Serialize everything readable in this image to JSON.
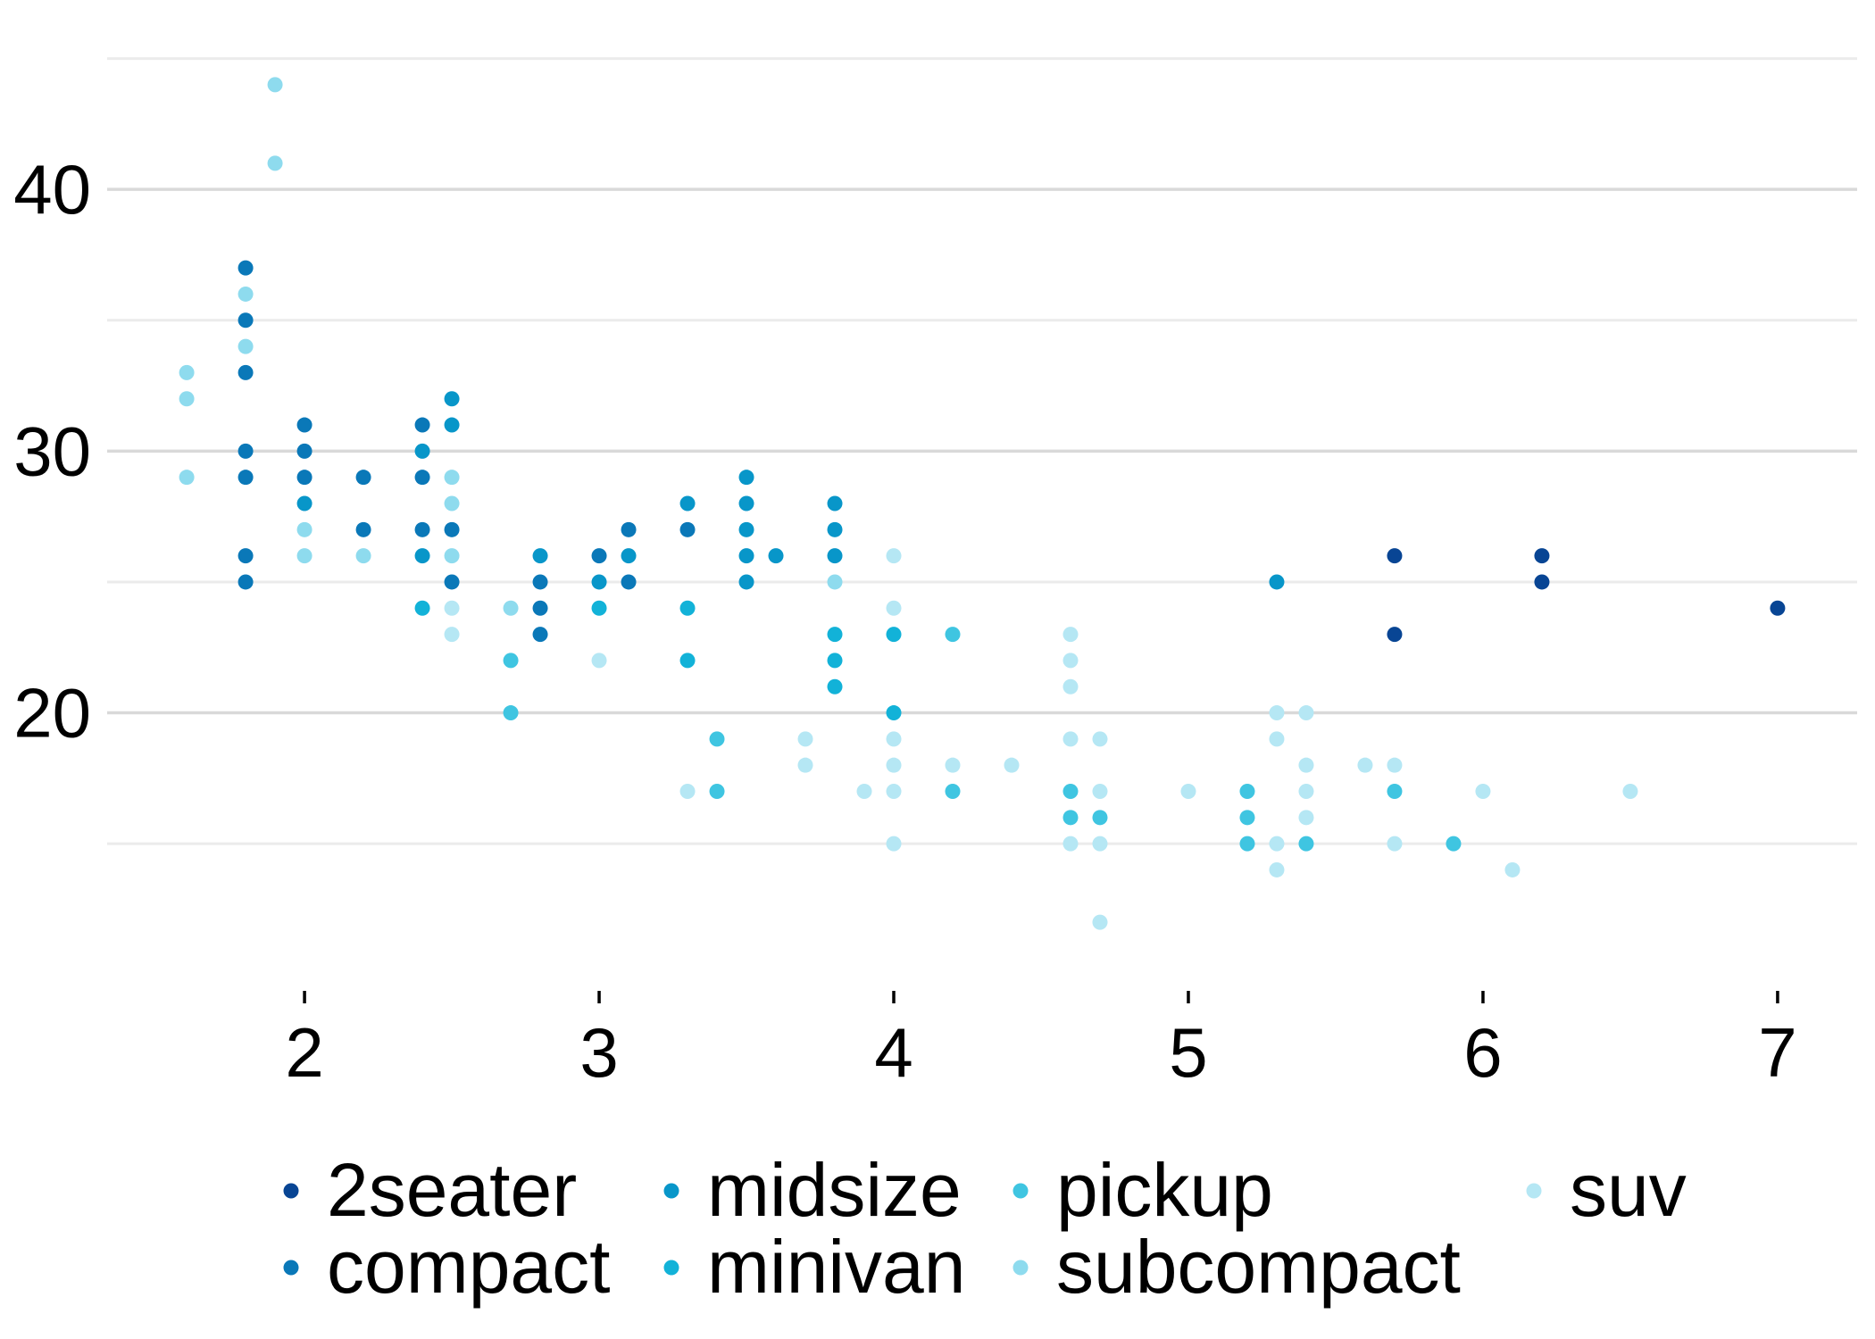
{
  "chart_data": {
    "type": "scatter",
    "title": "",
    "xlabel": "",
    "ylabel": "",
    "xlim": [
      1.33,
      7.27
    ],
    "ylim": [
      10.4,
      45.6
    ],
    "x_ticks": [
      {
        "value": 2,
        "label": "2"
      },
      {
        "value": 3,
        "label": "3"
      },
      {
        "value": 4,
        "label": "4"
      },
      {
        "value": 5,
        "label": "5"
      },
      {
        "value": 6,
        "label": "6"
      },
      {
        "value": 7,
        "label": "7"
      }
    ],
    "y_ticks": [
      {
        "value": 20,
        "label": "20"
      },
      {
        "value": 30,
        "label": "30"
      },
      {
        "value": 40,
        "label": "40"
      }
    ],
    "y_minor_grid": [
      15,
      25,
      35,
      45
    ],
    "grid": "horizontal",
    "legend_position": "bottom",
    "series": [
      {
        "name": "2seater",
        "color": "#084594",
        "points": [
          [
            5.7,
            26
          ],
          [
            5.7,
            23
          ],
          [
            6.2,
            26
          ],
          [
            6.2,
            25
          ],
          [
            7.0,
            24
          ]
        ]
      },
      {
        "name": "compact",
        "color": "#0a78b8",
        "points": [
          [
            1.8,
            37
          ],
          [
            1.8,
            35
          ],
          [
            1.8,
            33
          ],
          [
            1.8,
            30
          ],
          [
            1.8,
            29
          ],
          [
            1.8,
            26
          ],
          [
            1.8,
            25
          ],
          [
            2.0,
            31
          ],
          [
            2.0,
            30
          ],
          [
            2.0,
            29
          ],
          [
            2.2,
            29
          ],
          [
            2.2,
            27
          ],
          [
            2.4,
            31
          ],
          [
            2.4,
            29
          ],
          [
            2.4,
            27
          ],
          [
            2.5,
            27
          ],
          [
            2.5,
            25
          ],
          [
            2.8,
            25
          ],
          [
            2.8,
            24
          ],
          [
            2.8,
            23
          ],
          [
            3.0,
            26
          ],
          [
            3.1,
            27
          ],
          [
            3.1,
            25
          ],
          [
            3.3,
            27
          ]
        ]
      },
      {
        "name": "midsize",
        "color": "#0896c9",
        "points": [
          [
            2.0,
            28
          ],
          [
            2.4,
            30
          ],
          [
            2.4,
            26
          ],
          [
            2.5,
            32
          ],
          [
            2.5,
            31
          ],
          [
            2.8,
            26
          ],
          [
            3.0,
            25
          ],
          [
            3.1,
            26
          ],
          [
            3.3,
            28
          ],
          [
            3.5,
            29
          ],
          [
            3.5,
            28
          ],
          [
            3.5,
            27
          ],
          [
            3.5,
            26
          ],
          [
            3.5,
            25
          ],
          [
            3.6,
            26
          ],
          [
            3.8,
            28
          ],
          [
            3.8,
            27
          ],
          [
            3.8,
            26
          ],
          [
            5.3,
            25
          ]
        ]
      },
      {
        "name": "minivan",
        "color": "#12b2d8",
        "points": [
          [
            2.4,
            24
          ],
          [
            3.0,
            24
          ],
          [
            3.3,
            24
          ],
          [
            3.3,
            22
          ],
          [
            3.8,
            23
          ],
          [
            3.8,
            22
          ],
          [
            3.8,
            21
          ],
          [
            4.0,
            23
          ],
          [
            4.0,
            20
          ]
        ]
      },
      {
        "name": "pickup",
        "color": "#3fc5e1",
        "points": [
          [
            2.7,
            22
          ],
          [
            2.7,
            20
          ],
          [
            3.4,
            19
          ],
          [
            3.4,
            17
          ],
          [
            4.2,
            23
          ],
          [
            4.2,
            17
          ],
          [
            4.6,
            17
          ],
          [
            4.6,
            16
          ],
          [
            4.7,
            16
          ],
          [
            5.2,
            17
          ],
          [
            5.2,
            16
          ],
          [
            5.2,
            15
          ],
          [
            5.4,
            15
          ],
          [
            5.7,
            17
          ],
          [
            5.9,
            15
          ]
        ]
      },
      {
        "name": "subcompact",
        "color": "#8edbee",
        "points": [
          [
            1.6,
            33
          ],
          [
            1.6,
            32
          ],
          [
            1.6,
            29
          ],
          [
            1.8,
            36
          ],
          [
            1.8,
            34
          ],
          [
            1.9,
            44
          ],
          [
            1.9,
            41
          ],
          [
            2.0,
            27
          ],
          [
            2.0,
            26
          ],
          [
            2.2,
            26
          ],
          [
            2.5,
            29
          ],
          [
            2.5,
            28
          ],
          [
            2.5,
            26
          ],
          [
            2.7,
            24
          ],
          [
            3.8,
            25
          ]
        ]
      },
      {
        "name": "suv",
        "color": "#b5e7f4",
        "points": [
          [
            2.5,
            24
          ],
          [
            2.5,
            23
          ],
          [
            3.0,
            22
          ],
          [
            3.3,
            17
          ],
          [
            3.7,
            19
          ],
          [
            3.7,
            18
          ],
          [
            3.9,
            17
          ],
          [
            4.0,
            26
          ],
          [
            4.0,
            24
          ],
          [
            4.0,
            19
          ],
          [
            4.0,
            18
          ],
          [
            4.0,
            17
          ],
          [
            4.0,
            15
          ],
          [
            4.2,
            18
          ],
          [
            4.4,
            18
          ],
          [
            4.6,
            23
          ],
          [
            4.6,
            22
          ],
          [
            4.6,
            21
          ],
          [
            4.6,
            19
          ],
          [
            4.6,
            15
          ],
          [
            4.7,
            19
          ],
          [
            4.7,
            17
          ],
          [
            4.7,
            15
          ],
          [
            4.7,
            12
          ],
          [
            5.0,
            17
          ],
          [
            5.3,
            20
          ],
          [
            5.3,
            19
          ],
          [
            5.3,
            15
          ],
          [
            5.3,
            14
          ],
          [
            5.4,
            20
          ],
          [
            5.4,
            18
          ],
          [
            5.4,
            17
          ],
          [
            5.4,
            16
          ],
          [
            5.6,
            18
          ],
          [
            5.7,
            18
          ],
          [
            5.7,
            15
          ],
          [
            6.0,
            17
          ],
          [
            6.1,
            14
          ],
          [
            6.5,
            17
          ]
        ]
      }
    ]
  }
}
